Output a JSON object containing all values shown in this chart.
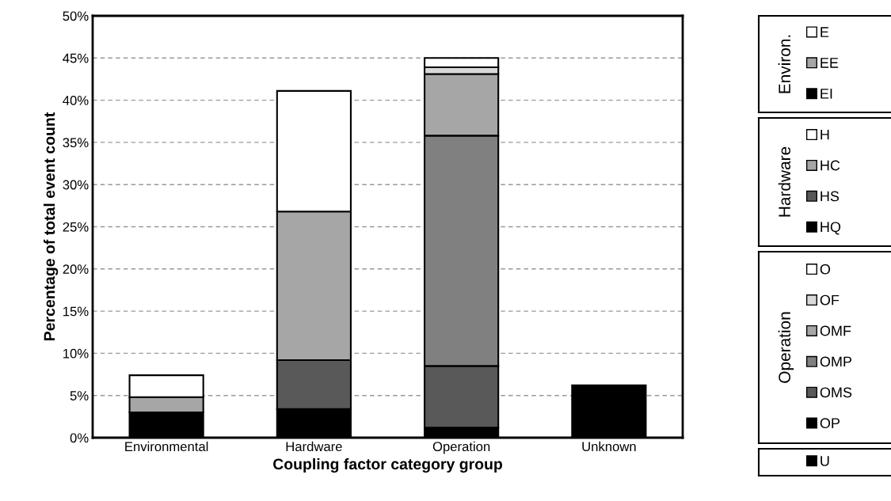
{
  "chart_data": {
    "type": "bar",
    "stacked": true,
    "xlabel": "Coupling factor category group",
    "ylabel": "Percentage of total event count",
    "categories": [
      "Environmental",
      "Hardware",
      "Operation",
      "Unknown"
    ],
    "series": [
      {
        "name": "EI",
        "color": "#000000",
        "values": [
          3.0,
          null,
          null,
          null
        ]
      },
      {
        "name": "EE",
        "color": "#a6a6a6",
        "values": [
          1.8,
          null,
          null,
          null
        ]
      },
      {
        "name": "E",
        "color": "#ffffff",
        "values": [
          2.6,
          null,
          null,
          null
        ]
      },
      {
        "name": "HQ",
        "color": "#000000",
        "values": [
          null,
          3.4,
          null,
          null
        ]
      },
      {
        "name": "HS",
        "color": "#595959",
        "values": [
          null,
          5.8,
          null,
          null
        ]
      },
      {
        "name": "HC",
        "color": "#a6a6a6",
        "values": [
          null,
          17.6,
          null,
          null
        ]
      },
      {
        "name": "H",
        "color": "#ffffff",
        "values": [
          null,
          14.3,
          null,
          null
        ]
      },
      {
        "name": "OP",
        "color": "#000000",
        "values": [
          null,
          null,
          1.2,
          null
        ]
      },
      {
        "name": "OMS",
        "color": "#595959",
        "values": [
          null,
          null,
          7.3,
          null
        ]
      },
      {
        "name": "OMP",
        "color": "#808080",
        "values": [
          null,
          null,
          27.3,
          null
        ]
      },
      {
        "name": "OMF",
        "color": "#a6a6a6",
        "values": [
          null,
          null,
          7.3,
          null
        ]
      },
      {
        "name": "OF",
        "color": "#d9d9d9",
        "values": [
          null,
          null,
          0.8,
          null
        ]
      },
      {
        "name": "O",
        "color": "#ffffff",
        "values": [
          null,
          null,
          1.1,
          null
        ]
      },
      {
        "name": "U",
        "color": "#000000",
        "values": [
          null,
          null,
          null,
          6.2
        ]
      }
    ],
    "ylim": [
      0,
      50
    ],
    "yticks": [
      {
        "value": 0,
        "label": "0%"
      },
      {
        "value": 5,
        "label": "5%"
      },
      {
        "value": 10,
        "label": "10%"
      },
      {
        "value": 15,
        "label": "15%"
      },
      {
        "value": 20,
        "label": "20%"
      },
      {
        "value": 25,
        "label": "25%"
      },
      {
        "value": 30,
        "label": "30%"
      },
      {
        "value": 35,
        "label": "35%"
      },
      {
        "value": 40,
        "label": "40%"
      },
      {
        "value": 45,
        "label": "45%"
      },
      {
        "value": 50,
        "label": "50%"
      }
    ],
    "grid": "y",
    "legend": "right",
    "annotations": [
      "Environ.",
      "Hardware",
      "Operation"
    ]
  }
}
